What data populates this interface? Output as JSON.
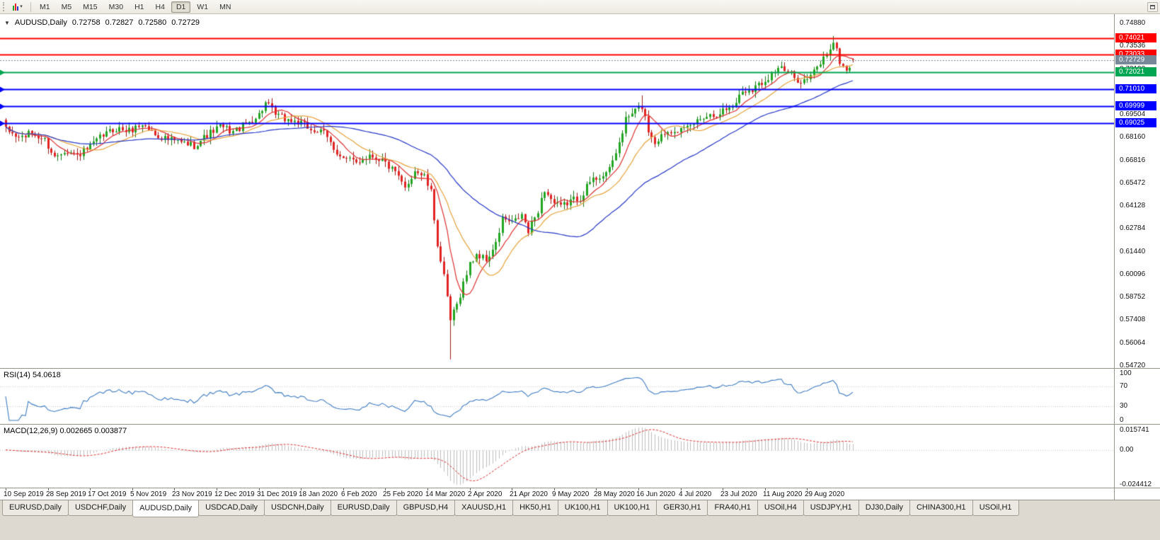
{
  "colors": {
    "candle_up": "#21A621",
    "candle_up_dark": "#157515",
    "candle_down": "#E32222",
    "candle_down_dark": "#9E1818",
    "rsi_line": "#3E7BC4",
    "macd_hist": "#BDBDBD",
    "macd_signal": "#E03030",
    "bid_line": "#778899",
    "level_dotted": "#C8C8C8"
  },
  "toolbar": {
    "timeframes": [
      {
        "label": "M1",
        "active": false
      },
      {
        "label": "M5",
        "active": false
      },
      {
        "label": "M15",
        "active": false
      },
      {
        "label": "M30",
        "active": false
      },
      {
        "label": "H1",
        "active": false
      },
      {
        "label": "H4",
        "active": false
      },
      {
        "label": "D1",
        "active": true
      },
      {
        "label": "W1",
        "active": false
      },
      {
        "label": "MN",
        "active": false
      }
    ]
  },
  "chart_header": {
    "symbol": "AUDUSD,Daily",
    "open": "0.72758",
    "high": "0.72827",
    "low": "0.72580",
    "close": "0.72729"
  },
  "price_axis": {
    "labels": [
      "0.74880",
      "0.73536",
      "0.72192",
      "0.70848",
      "0.69504",
      "0.68160",
      "0.66816",
      "0.65472",
      "0.64128",
      "0.62784",
      "0.61440",
      "0.60096",
      "0.58752",
      "0.57408",
      "0.56064",
      "0.54720"
    ]
  },
  "bid_tag": {
    "label": "0.72729",
    "price": 0.72729
  },
  "indicators": {
    "rsi": {
      "label": "RSI(14) 54.0618",
      "period": 14,
      "levels": [
        70,
        30
      ],
      "axis_labels": [
        {
          "text": "100",
          "value": 100
        },
        {
          "text": "70",
          "value": 70
        },
        {
          "text": "30",
          "value": 30
        },
        {
          "text": "0",
          "value": 0
        }
      ]
    },
    "macd": {
      "label": "MACD(12,26,9) 0.002665 0.003877",
      "axis_labels": [
        {
          "text": "0.015741",
          "value": 0.015741
        },
        {
          "text": "0.00",
          "value": 0
        },
        {
          "text": "-0.024412",
          "value": -0.024412
        }
      ]
    }
  },
  "time_axis": {
    "labels": [
      {
        "index": 0,
        "text": "10 Sep 2019"
      },
      {
        "index": 13,
        "text": "28 Sep 2019"
      },
      {
        "index": 26,
        "text": "17 Oct 2019"
      },
      {
        "index": 39,
        "text": "5 Nov 2019"
      },
      {
        "index": 52,
        "text": "23 Nov 2019"
      },
      {
        "index": 65,
        "text": "12 Dec 2019"
      },
      {
        "index": 78,
        "text": "31 Dec 2019"
      },
      {
        "index": 91,
        "text": "18 Jan 2020"
      },
      {
        "index": 104,
        "text": "6 Feb 2020"
      },
      {
        "index": 117,
        "text": "25 Feb 2020"
      },
      {
        "index": 130,
        "text": "14 Mar 2020"
      },
      {
        "index": 143,
        "text": "2 Apr 2020"
      },
      {
        "index": 156,
        "text": "21 Apr 2020"
      },
      {
        "index": 169,
        "text": "9 May 2020"
      },
      {
        "index": 182,
        "text": "28 May 2020"
      },
      {
        "index": 195,
        "text": "16 Jun 2020"
      },
      {
        "index": 208,
        "text": "4 Jul 2020"
      },
      {
        "index": 221,
        "text": "23 Jul 2020"
      },
      {
        "index": 234,
        "text": "11 Aug 2020"
      },
      {
        "index": 247,
        "text": "29 Aug 2020"
      }
    ]
  },
  "tabs": [
    {
      "label": "EURUSD,Daily",
      "active": false
    },
    {
      "label": "USDCHF,Daily",
      "active": false
    },
    {
      "label": "AUDUSD,Daily",
      "active": true
    },
    {
      "label": "USDCAD,Daily",
      "active": false
    },
    {
      "label": "USDCNH,Daily",
      "active": false
    },
    {
      "label": "EURUSD,Daily",
      "active": false
    },
    {
      "label": "GBPUSD,H4",
      "active": false
    },
    {
      "label": "XAUUSD,H1",
      "active": false
    },
    {
      "label": "HK50,H1",
      "active": false
    },
    {
      "label": "UK100,H1",
      "active": false
    },
    {
      "label": "UK100,H1",
      "active": false
    },
    {
      "label": "GER30,H1",
      "active": false
    },
    {
      "label": "FRA40,H1",
      "active": false
    },
    {
      "label": "USOil,H4",
      "active": false
    },
    {
      "label": "USDJPY,H1",
      "active": false
    },
    {
      "label": "DJ30,Daily",
      "active": false
    },
    {
      "label": "CHINA300,H1",
      "active": false
    },
    {
      "label": "USOil,H1",
      "active": false
    }
  ],
  "chart_data": {
    "type": "candlestick",
    "symbol": "AUDUSD",
    "timeframe": "Daily",
    "candle_count": 262,
    "price_range": [
      0.5472,
      0.7488
    ],
    "ohlc_current": {
      "open": 0.72758,
      "high": 0.72827,
      "low": 0.7258,
      "close": 0.72729
    },
    "hlines": [
      {
        "price": 0.74021,
        "label": "0.74021",
        "color": "#FF0000",
        "marker": false
      },
      {
        "price": 0.73033,
        "label": "0.73033",
        "color": "#FF0000",
        "marker": false
      },
      {
        "price": 0.72021,
        "label": "0.72021",
        "color": "#00A651",
        "marker": true
      },
      {
        "price": 0.7101,
        "label": "0.71010",
        "color": "#0000FF",
        "marker": true
      },
      {
        "price": 0.69999,
        "label": "0.69999",
        "color": "#0000FF",
        "marker": true
      },
      {
        "price": 0.69025,
        "label": "0.69025",
        "color": "#0000FF",
        "marker": true
      }
    ],
    "moving_averages": [
      {
        "period": 8,
        "color": "#E03030"
      },
      {
        "period": 17,
        "color": "#E8A33D"
      },
      {
        "period": 45,
        "color": "#2638C8"
      }
    ],
    "macd_axis": {
      "max": 0.015741,
      "min": -0.024412
    },
    "waypoints": [
      [
        0,
        0.686
      ],
      [
        4,
        0.6815
      ],
      [
        8,
        0.684
      ],
      [
        12,
        0.68
      ],
      [
        15,
        0.67
      ],
      [
        18,
        0.6745
      ],
      [
        22,
        0.671
      ],
      [
        26,
        0.676
      ],
      [
        30,
        0.683
      ],
      [
        34,
        0.687
      ],
      [
        38,
        0.6855
      ],
      [
        42,
        0.6895
      ],
      [
        46,
        0.6835
      ],
      [
        50,
        0.6805
      ],
      [
        54,
        0.6785
      ],
      [
        58,
        0.677
      ],
      [
        62,
        0.683
      ],
      [
        66,
        0.688
      ],
      [
        70,
        0.685
      ],
      [
        74,
        0.6895
      ],
      [
        78,
        0.695
      ],
      [
        80,
        0.702
      ],
      [
        83,
        0.695
      ],
      [
        86,
        0.6925
      ],
      [
        90,
        0.6905
      ],
      [
        94,
        0.6865
      ],
      [
        98,
        0.684
      ],
      [
        101,
        0.6755
      ],
      [
        104,
        0.669
      ],
      [
        108,
        0.667
      ],
      [
        112,
        0.6715
      ],
      [
        116,
        0.6685
      ],
      [
        120,
        0.6605
      ],
      [
        123,
        0.6515
      ],
      [
        126,
        0.6625
      ],
      [
        129,
        0.6585
      ],
      [
        131,
        0.649
      ],
      [
        133,
        0.619
      ],
      [
        135,
        0.599
      ],
      [
        137,
        0.574
      ],
      [
        139,
        0.583
      ],
      [
        141,
        0.596
      ],
      [
        143,
        0.607
      ],
      [
        145,
        0.613
      ],
      [
        148,
        0.6095
      ],
      [
        151,
        0.6185
      ],
      [
        153,
        0.634
      ],
      [
        156,
        0.631
      ],
      [
        159,
        0.636
      ],
      [
        161,
        0.626
      ],
      [
        164,
        0.639
      ],
      [
        166,
        0.651
      ],
      [
        169,
        0.6425
      ],
      [
        171,
        0.6405
      ],
      [
        174,
        0.6445
      ],
      [
        177,
        0.6465
      ],
      [
        180,
        0.6555
      ],
      [
        183,
        0.659
      ],
      [
        186,
        0.662
      ],
      [
        189,
        0.6785
      ],
      [
        191,
        0.692
      ],
      [
        194,
        0.6975
      ],
      [
        196,
        0.7
      ],
      [
        198,
        0.686
      ],
      [
        200,
        0.679
      ],
      [
        203,
        0.6845
      ],
      [
        206,
        0.687
      ],
      [
        209,
        0.6855
      ],
      [
        212,
        0.69
      ],
      [
        215,
        0.6945
      ],
      [
        218,
        0.695
      ],
      [
        221,
        0.6975
      ],
      [
        224,
        0.7
      ],
      [
        227,
        0.709
      ],
      [
        230,
        0.7105
      ],
      [
        233,
        0.714
      ],
      [
        236,
        0.719
      ],
      [
        238,
        0.723
      ],
      [
        241,
        0.7195
      ],
      [
        243,
        0.7165
      ],
      [
        246,
        0.715
      ],
      [
        248,
        0.7175
      ],
      [
        251,
        0.7255
      ],
      [
        253,
        0.731
      ],
      [
        255,
        0.738
      ],
      [
        257,
        0.7265
      ],
      [
        259,
        0.7205
      ],
      [
        261,
        0.72729
      ]
    ],
    "wick_overrides": {
      "high": {
        "80": 0.7032,
        "196": 0.7064,
        "255": 0.7414
      },
      "low": {
        "137": 0.551,
        "259": 0.7192
      }
    }
  }
}
